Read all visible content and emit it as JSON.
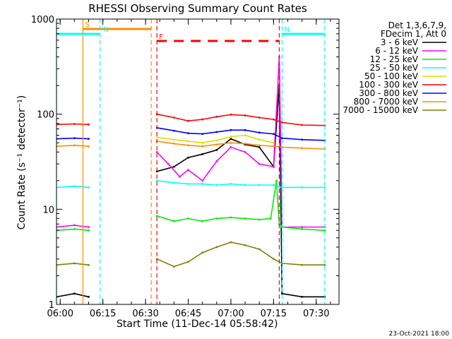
{
  "chart_data": {
    "type": "line",
    "title": "RHESSI Observing Summary Count Rates",
    "xlabel": "Start Time (11-Dec-14 05:58:42)",
    "ylabel": "Count Rate (s⁻¹ detector⁻¹)",
    "y_scale": "log",
    "ylim": [
      1,
      1000
    ],
    "y_ticks": [
      {
        "value": 1,
        "label": "1"
      },
      {
        "value": 10,
        "label": "10"
      },
      {
        "value": 100,
        "label": "100"
      },
      {
        "value": 1000,
        "label": "1000"
      }
    ],
    "xlim": [
      "05:58:42",
      "07:38:00"
    ],
    "x_ticks": [
      {
        "value": "06:00",
        "label": "06:00"
      },
      {
        "value": "06:15",
        "label": "06:15"
      },
      {
        "value": "06:30",
        "label": "06:30"
      },
      {
        "value": "06:45",
        "label": "06:45"
      },
      {
        "value": "07:00",
        "label": "07:00"
      },
      {
        "value": "07:15",
        "label": "07:15"
      },
      {
        "value": "07:30",
        "label": "07:30"
      }
    ],
    "legend_position": "right, outside plot",
    "legend_header": [
      "Det 1,3,6,7,9,",
      "FDecim 1, Att 0"
    ],
    "series": [
      {
        "name": "3 - 6 keV",
        "color": "#000000",
        "points": [
          [
            "05:58:42",
            1.2
          ],
          [
            "06:05",
            1.3
          ],
          [
            "06:10",
            1.2
          ],
          [
            "06:34",
            25
          ],
          [
            "06:40",
            28
          ],
          [
            "06:45",
            35
          ],
          [
            "06:50",
            38
          ],
          [
            "06:55",
            42
          ],
          [
            "07:00",
            55
          ],
          [
            "07:05",
            48
          ],
          [
            "07:10",
            45
          ],
          [
            "07:15",
            28
          ],
          [
            "07:17",
            200
          ],
          [
            "07:18",
            1.3
          ],
          [
            "07:25",
            1.2
          ],
          [
            "07:33",
            1.2
          ]
        ]
      },
      {
        "name": "6 - 12 keV",
        "color": "#ff00ff",
        "points": [
          [
            "05:58:42",
            6.5
          ],
          [
            "06:05",
            6.8
          ],
          [
            "06:10",
            6.5
          ],
          [
            "06:34",
            40
          ],
          [
            "06:38",
            30
          ],
          [
            "06:42",
            22
          ],
          [
            "06:45",
            26
          ],
          [
            "06:50",
            20
          ],
          [
            "06:55",
            32
          ],
          [
            "07:00",
            45
          ],
          [
            "07:05",
            40
          ],
          [
            "07:10",
            30
          ],
          [
            "07:15",
            28
          ],
          [
            "07:17",
            400
          ],
          [
            "07:18",
            6.5
          ],
          [
            "07:25",
            6.5
          ],
          [
            "07:33",
            6.5
          ]
        ]
      },
      {
        "name": "12 - 25 keV",
        "color": "#00ee00",
        "points": [
          [
            "05:58:42",
            6
          ],
          [
            "06:05",
            6.2
          ],
          [
            "06:10",
            6
          ],
          [
            "06:34",
            8.5
          ],
          [
            "06:40",
            7.5
          ],
          [
            "06:45",
            8
          ],
          [
            "06:50",
            7.5
          ],
          [
            "06:55",
            8
          ],
          [
            "07:00",
            8.2
          ],
          [
            "07:05",
            8
          ],
          [
            "07:10",
            7.8
          ],
          [
            "07:14",
            8
          ],
          [
            "07:16",
            20
          ],
          [
            "07:17",
            7
          ],
          [
            "07:18",
            6.5
          ],
          [
            "07:25",
            6.2
          ],
          [
            "07:33",
            6
          ]
        ]
      },
      {
        "name": "25 - 50 keV",
        "color": "#00ffff",
        "points": [
          [
            "05:58:42",
            17
          ],
          [
            "06:05",
            17.5
          ],
          [
            "06:10",
            17
          ],
          [
            "06:34",
            20
          ],
          [
            "06:40",
            19
          ],
          [
            "06:45",
            18.5
          ],
          [
            "06:50",
            18.5
          ],
          [
            "06:55",
            18
          ],
          [
            "07:00",
            18.5
          ],
          [
            "07:05",
            18
          ],
          [
            "07:10",
            18
          ],
          [
            "07:15",
            18
          ],
          [
            "07:18",
            17
          ],
          [
            "07:25",
            17
          ],
          [
            "07:33",
            17
          ]
        ]
      },
      {
        "name": "50 - 100 keV",
        "color": "#dddd00",
        "points": [
          [
            "06:34",
            57
          ],
          [
            "06:40",
            54
          ],
          [
            "06:45",
            52
          ],
          [
            "06:50",
            50
          ],
          [
            "06:55",
            53
          ],
          [
            "07:00",
            58
          ],
          [
            "07:05",
            60
          ],
          [
            "07:10",
            54
          ],
          [
            "07:15",
            50
          ]
        ]
      },
      {
        "name": "100 - 300 keV",
        "color": "#ff0000",
        "points": [
          [
            "05:58:42",
            78
          ],
          [
            "06:05",
            79
          ],
          [
            "06:10",
            78
          ],
          [
            "06:34",
            100
          ],
          [
            "06:40",
            92
          ],
          [
            "06:45",
            85
          ],
          [
            "06:50",
            88
          ],
          [
            "06:55",
            94
          ],
          [
            "07:00",
            99
          ],
          [
            "07:05",
            97
          ],
          [
            "07:10",
            92
          ],
          [
            "07:15",
            88
          ],
          [
            "07:18",
            82
          ],
          [
            "07:25",
            77
          ],
          [
            "07:33",
            76
          ]
        ]
      },
      {
        "name": "300 - 800 keV",
        "color": "#0000ff",
        "points": [
          [
            "05:58:42",
            55
          ],
          [
            "06:05",
            56
          ],
          [
            "06:10",
            55
          ],
          [
            "06:34",
            72
          ],
          [
            "06:40",
            67
          ],
          [
            "06:45",
            63
          ],
          [
            "06:50",
            62
          ],
          [
            "06:55",
            65
          ],
          [
            "07:00",
            68
          ],
          [
            "07:05",
            68
          ],
          [
            "07:10",
            64
          ],
          [
            "07:15",
            62
          ],
          [
            "07:18",
            56
          ],
          [
            "07:25",
            54
          ],
          [
            "07:33",
            53
          ]
        ]
      },
      {
        "name": "800 - 7000 keV",
        "color": "#ff8c00",
        "points": [
          [
            "05:58:42",
            46
          ],
          [
            "06:05",
            47
          ],
          [
            "06:10",
            46
          ],
          [
            "06:34",
            52
          ],
          [
            "06:40",
            49
          ],
          [
            "06:45",
            47
          ],
          [
            "06:50",
            46
          ],
          [
            "06:55",
            48
          ],
          [
            "07:00",
            50
          ],
          [
            "07:05",
            49
          ],
          [
            "07:10",
            47
          ],
          [
            "07:15",
            46
          ],
          [
            "07:18",
            45
          ],
          [
            "07:25",
            44
          ],
          [
            "07:33",
            43
          ]
        ]
      },
      {
        "name": "7000 - 15000 keV",
        "color": "#808000",
        "points": [
          [
            "05:58:42",
            2.6
          ],
          [
            "06:05",
            2.7
          ],
          [
            "06:10",
            2.6
          ],
          [
            "06:34",
            3
          ],
          [
            "06:40",
            2.5
          ],
          [
            "06:45",
            2.8
          ],
          [
            "06:50",
            3.5
          ],
          [
            "06:55",
            4
          ],
          [
            "07:00",
            4.5
          ],
          [
            "07:05",
            4.2
          ],
          [
            "07:10",
            3.8
          ],
          [
            "07:15",
            3
          ],
          [
            "07:18",
            2.7
          ],
          [
            "07:25",
            2.6
          ],
          [
            "07:33",
            2.6
          ]
        ]
      }
    ],
    "annotations": [
      {
        "label": "S",
        "color": "#ff8c00",
        "kind": "flag span",
        "start": "06:08",
        "end": "06:32"
      },
      {
        "label": "N",
        "color": "#00ffff",
        "kind": "flag span",
        "start": "05:58:42",
        "end": "06:14"
      },
      {
        "label": "N",
        "color": "#00ffff",
        "kind": "flag span",
        "start": "07:18",
        "end": "07:33"
      },
      {
        "label": "F",
        "color": "#ff0000",
        "kind": "flag dashed span",
        "start": "06:34",
        "end": "07:17"
      }
    ],
    "footer": "23-Oct-2021 18:00"
  }
}
